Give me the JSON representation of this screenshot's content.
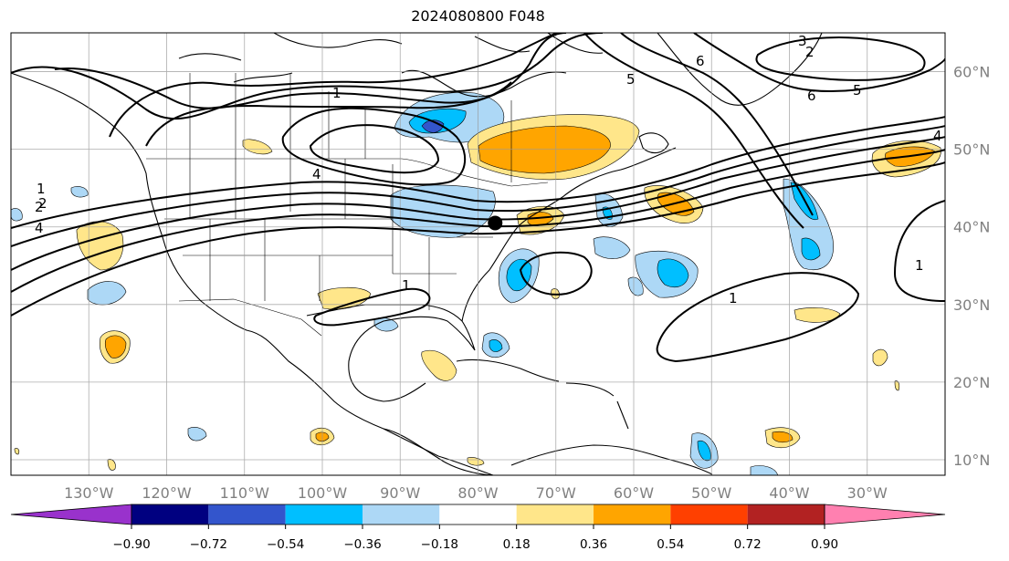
{
  "title": "2024080800 F048",
  "map": {
    "lon_range": [
      -140,
      -20
    ],
    "lat_range": [
      8,
      65
    ],
    "lon_ticks": [
      {
        "value": -130,
        "label": "130°W"
      },
      {
        "value": -120,
        "label": "120°W"
      },
      {
        "value": -110,
        "label": "110°W"
      },
      {
        "value": -100,
        "label": "100°W"
      },
      {
        "value": -90,
        "label": "90°W"
      },
      {
        "value": -80,
        "label": "80°W"
      },
      {
        "value": -70,
        "label": "70°W"
      },
      {
        "value": -60,
        "label": "60°W"
      },
      {
        "value": -50,
        "label": "50°W"
      },
      {
        "value": -40,
        "label": "40°W"
      },
      {
        "value": -30,
        "label": "30°W"
      }
    ],
    "lat_ticks": [
      {
        "value": 60,
        "label": "60°N"
      },
      {
        "value": 50,
        "label": "50°N"
      },
      {
        "value": 40,
        "label": "40°N"
      },
      {
        "value": 30,
        "label": "30°N"
      },
      {
        "value": 20,
        "label": "20°N"
      },
      {
        "value": 10,
        "label": "10°N"
      }
    ],
    "marker": {
      "lon": -77.8,
      "lat": 40.5,
      "color": "#000000"
    },
    "contour_labels": [
      "1",
      "2",
      "4",
      "5",
      "6",
      "3",
      "1",
      "2",
      "4",
      "1",
      "1",
      "1",
      "2",
      "4",
      "5",
      "6"
    ]
  },
  "colorbar": {
    "levels": [
      "−0.90",
      "−0.72",
      "−0.54",
      "−0.36",
      "−0.18",
      "0.18",
      "0.36",
      "0.54",
      "0.72",
      "0.90"
    ],
    "colors": [
      "#9932cc",
      "#000080",
      "#3355cc",
      "#00bfff",
      "#add8f6",
      "#ffffff",
      "#ffe68a",
      "#ffa500",
      "#ff4000",
      "#b22222",
      "#ff80b0"
    ]
  }
}
